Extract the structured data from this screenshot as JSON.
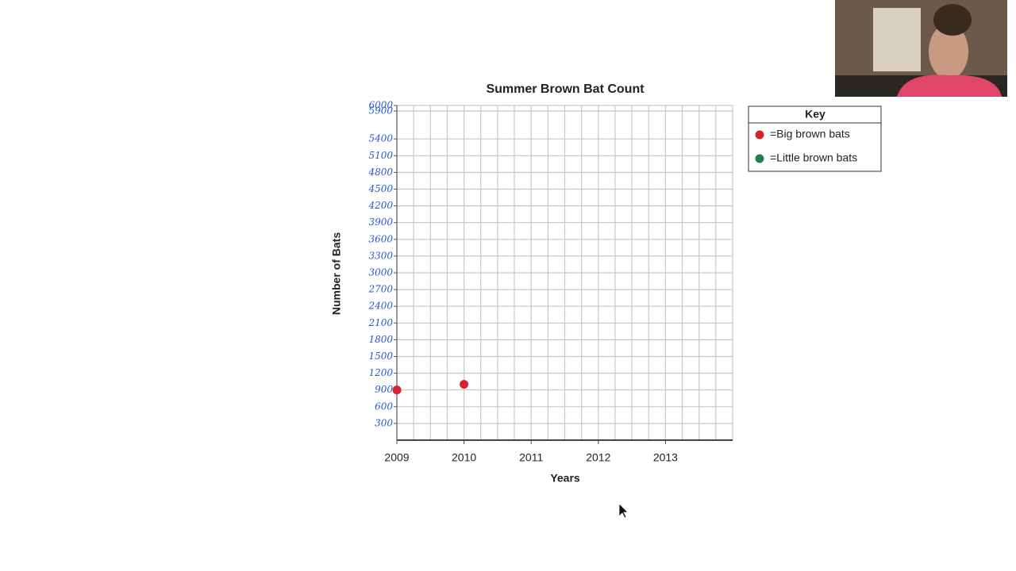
{
  "chart_data": {
    "type": "scatter",
    "title": "Summer Brown Bat Count",
    "x_label": "Years",
    "y_label": "Number of Bats",
    "x": [
      2009,
      2010
    ],
    "series": [
      {
        "name": "=Big brown bats",
        "color": "#d7232f",
        "values": [
          900,
          1000
        ]
      },
      {
        "name": "=Little brown bats",
        "color": "#24804a",
        "values": [
          null,
          null
        ]
      }
    ],
    "xlim": [
      2009,
      2014
    ],
    "xticks": [
      2009,
      2010,
      2011,
      2012,
      2013
    ],
    "ylim": [
      0,
      6000
    ],
    "yticks": [
      300,
      600,
      900,
      1200,
      1500,
      1800,
      2100,
      2400,
      2700,
      3000,
      3300,
      3600,
      3900,
      4200,
      4500,
      4800,
      5100,
      5400,
      5900,
      6000
    ],
    "legend_title": "Key",
    "legend_position": "right",
    "grid": true
  }
}
